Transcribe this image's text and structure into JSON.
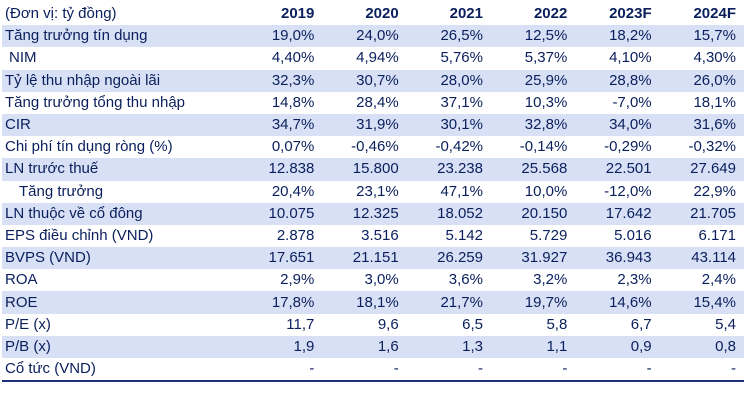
{
  "table": {
    "unit_label": "(Đơn vị: tỷ đồng)",
    "columns": [
      "2019",
      "2020",
      "2021",
      "2022",
      "2023F",
      "2024F"
    ],
    "rows": [
      {
        "label": "Tăng trưởng tín dụng",
        "values": [
          "19,0%",
          "24,0%",
          "26,5%",
          "12,5%",
          "18,2%",
          "15,7%"
        ]
      },
      {
        "label": "NIM",
        "values": [
          "4,40%",
          "4,94%",
          "5,76%",
          "5,37%",
          "4,10%",
          "4,30%"
        ]
      },
      {
        "label": "Tỷ lệ thu nhập ngoài lãi",
        "values": [
          "32,3%",
          "30,7%",
          "28,0%",
          "25,9%",
          "28,8%",
          "26,0%"
        ]
      },
      {
        "label": "Tăng trưởng tổng thu nhập",
        "values": [
          "14,8%",
          "28,4%",
          "37,1%",
          "10,3%",
          "-7,0%",
          "18,1%"
        ]
      },
      {
        "label": "CIR",
        "values": [
          "34,7%",
          "31,9%",
          "30,1%",
          "32,8%",
          "34,0%",
          "31,6%"
        ]
      },
      {
        "label": "Chi phí tín dụng ròng (%)",
        "values": [
          "0,07%",
          "-0,46%",
          "-0,42%",
          "-0,14%",
          "-0,29%",
          "-0,32%"
        ]
      },
      {
        "label": "LN trước thuế",
        "values": [
          "12.838",
          "15.800",
          "23.238",
          "25.568",
          "22.501",
          "27.649"
        ]
      },
      {
        "label": "Tăng trưởng",
        "values": [
          "20,4%",
          "23,1%",
          "47,1%",
          "10,0%",
          "-12,0%",
          "22,9%"
        ]
      },
      {
        "label": "LN thuộc về cổ đông",
        "values": [
          "10.075",
          "12.325",
          "18.052",
          "20.150",
          "17.642",
          "21.705"
        ]
      },
      {
        "label": "EPS điều chỉnh (VND)",
        "values": [
          "2.878",
          "3.516",
          "5.142",
          "5.729",
          "5.016",
          "6.171"
        ]
      },
      {
        "label": "BVPS (VND)",
        "values": [
          "17.651",
          "21.151",
          "26.259",
          "31.927",
          "36.943",
          "43.114"
        ]
      },
      {
        "label": "ROA",
        "values": [
          "2,9%",
          "3,0%",
          "3,6%",
          "3,2%",
          "2,3%",
          "2,4%"
        ]
      },
      {
        "label": "ROE",
        "values": [
          "17,8%",
          "18,1%",
          "21,7%",
          "19,7%",
          "14,6%",
          "15,4%"
        ]
      },
      {
        "label": "P/E (x)",
        "values": [
          "11,7",
          "9,6",
          "6,5",
          "5,8",
          "6,7",
          "5,4"
        ]
      },
      {
        "label": "P/B (x)",
        "values": [
          "1,9",
          "1,6",
          "1,3",
          "1,1",
          "0,9",
          "0,8"
        ]
      },
      {
        "label": "Cổ tức (VND)",
        "values": [
          "-",
          "-",
          "-",
          "-",
          "-",
          "-"
        ]
      }
    ]
  }
}
